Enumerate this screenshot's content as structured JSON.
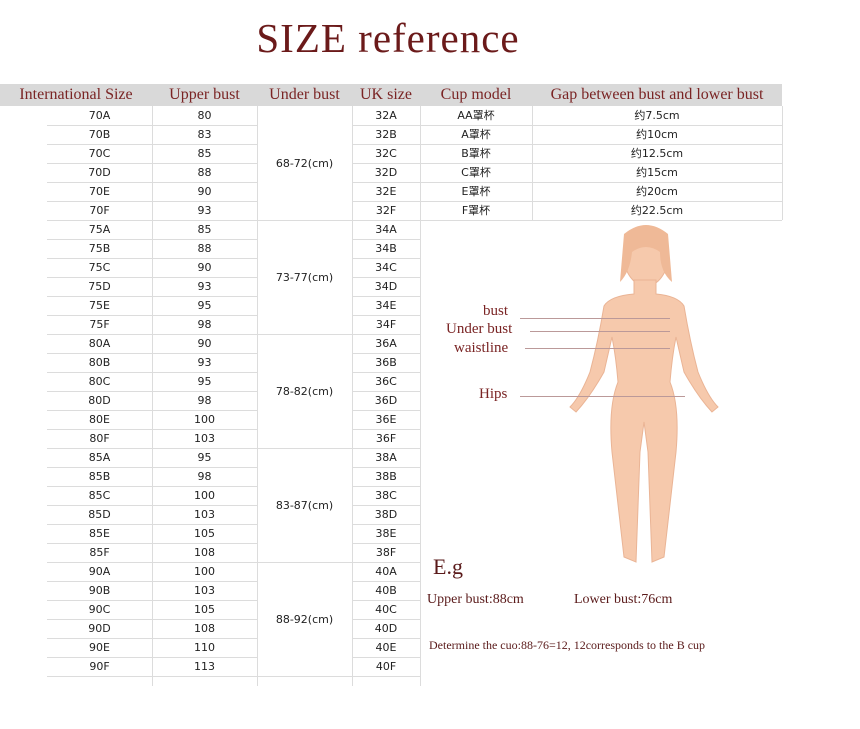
{
  "title": "SIZE reference",
  "table": {
    "headers": [
      "International Size",
      "Upper bust",
      "Under bust",
      "UK size",
      "Cup model",
      "Gap between bust and lower bust"
    ],
    "rows": [
      [
        "70A",
        "80",
        "32A"
      ],
      [
        "70B",
        "83",
        "32B"
      ],
      [
        "70C",
        "85",
        "32C"
      ],
      [
        "70D",
        "88",
        "32D"
      ],
      [
        "70E",
        "90",
        "32E"
      ],
      [
        "70F",
        "93",
        "32F"
      ],
      [
        "75A",
        "85",
        "34A"
      ],
      [
        "75B",
        "88",
        "34B"
      ],
      [
        "75C",
        "90",
        "34C"
      ],
      [
        "75D",
        "93",
        "34D"
      ],
      [
        "75E",
        "95",
        "34E"
      ],
      [
        "75F",
        "98",
        "34F"
      ],
      [
        "80A",
        "90",
        "36A"
      ],
      [
        "80B",
        "93",
        "36B"
      ],
      [
        "80C",
        "95",
        "36C"
      ],
      [
        "80D",
        "98",
        "36D"
      ],
      [
        "80E",
        "100",
        "36E"
      ],
      [
        "80F",
        "103",
        "36F"
      ],
      [
        "85A",
        "95",
        "38A"
      ],
      [
        "85B",
        "98",
        "38B"
      ],
      [
        "85C",
        "100",
        "38C"
      ],
      [
        "85D",
        "103",
        "38D"
      ],
      [
        "85E",
        "105",
        "38E"
      ],
      [
        "85F",
        "108",
        "38F"
      ],
      [
        "90A",
        "100",
        "40A"
      ],
      [
        "90B",
        "103",
        "40B"
      ],
      [
        "90C",
        "105",
        "40C"
      ],
      [
        "90D",
        "108",
        "40D"
      ],
      [
        "90E",
        "110",
        "40E"
      ],
      [
        "90F",
        "113",
        "40F"
      ]
    ],
    "under_bust": [
      "68-72(cm)",
      "73-77(cm)",
      "78-82(cm)",
      "83-87(cm)",
      "88-92(cm)"
    ],
    "cups": [
      [
        "AA罩杯",
        "约7.5cm"
      ],
      [
        "A罩杯",
        "约10cm"
      ],
      [
        "B罩杯",
        "约12.5cm"
      ],
      [
        "C罩杯",
        "约15cm"
      ],
      [
        "E罩杯",
        "约20cm"
      ],
      [
        "F罩杯",
        "约22.5cm"
      ]
    ]
  },
  "figure": {
    "labels": [
      "bust",
      "Under bust",
      "waistline",
      "Hips"
    ]
  },
  "example": {
    "title": "E.g",
    "upper": "Upper bust:88cm",
    "lower": "Lower bust:76cm",
    "note": "Determine the cuo:88-76=12, 12corresponds to the B cup"
  }
}
